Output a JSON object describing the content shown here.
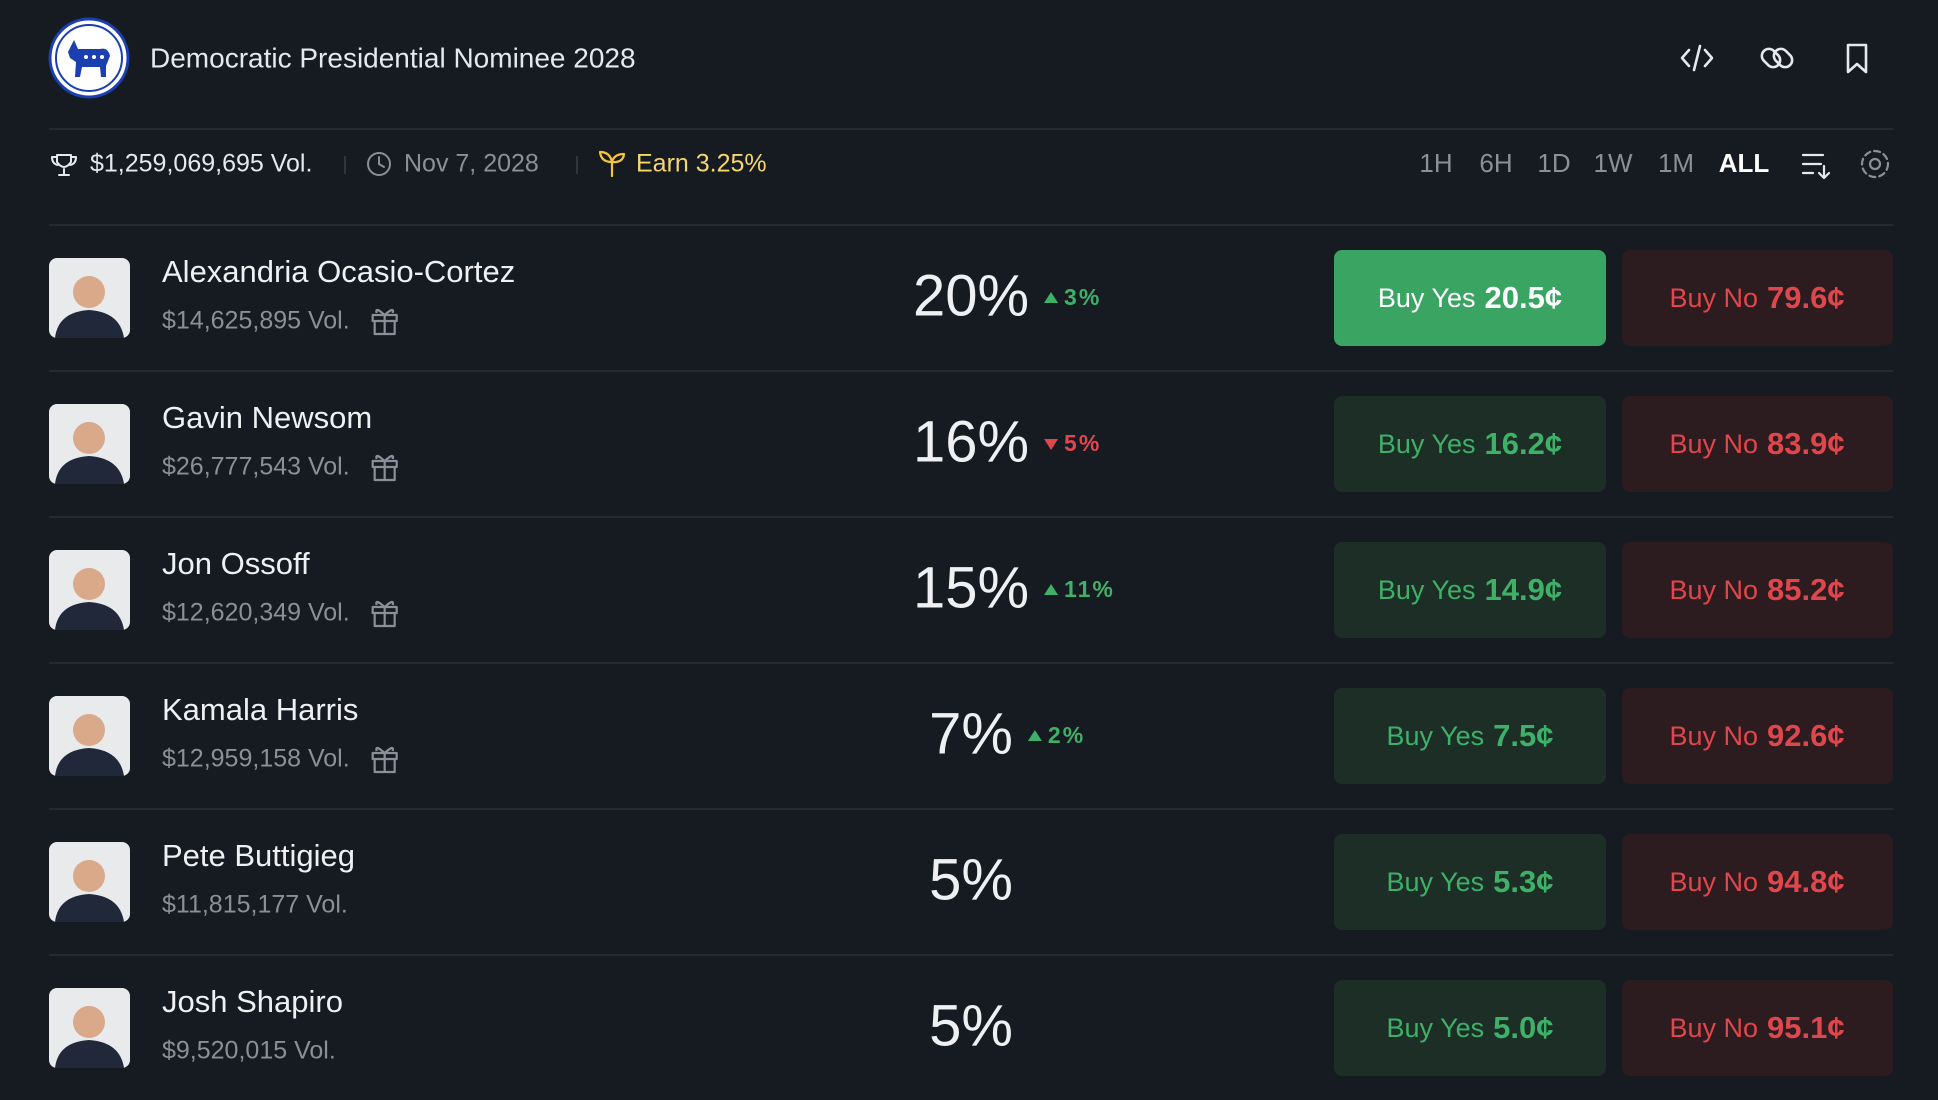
{
  "header": {
    "title": "Democratic Presidential Nominee 2028",
    "volume": "$1,259,069,695 Vol.",
    "end_date": "Nov 7, 2028",
    "earn": "Earn 3.25%"
  },
  "time_ranges": {
    "options": [
      "1H",
      "6H",
      "1D",
      "1W",
      "1M",
      "ALL"
    ],
    "selected_index": 5
  },
  "outcomes": [
    {
      "name": "Alexandria Ocasio-Cortez",
      "volume": "$14,625,895 Vol.",
      "probability": "20%",
      "change": "3%",
      "direction": "up",
      "gift": true,
      "highlighted": true,
      "yes_label": "Buy Yes",
      "yes_price": "20.5¢",
      "no_label": "Buy No",
      "no_price": "79.6¢"
    },
    {
      "name": "Gavin Newsom",
      "volume": "$26,777,543 Vol.",
      "probability": "16%",
      "change": "5%",
      "direction": "down",
      "gift": true,
      "highlighted": false,
      "yes_label": "Buy Yes",
      "yes_price": "16.2¢",
      "no_label": "Buy No",
      "no_price": "83.9¢"
    },
    {
      "name": "Jon Ossoff",
      "volume": "$12,620,349 Vol.",
      "probability": "15%",
      "change": "11%",
      "direction": "up",
      "gift": true,
      "highlighted": false,
      "yes_label": "Buy Yes",
      "yes_price": "14.9¢",
      "no_label": "Buy No",
      "no_price": "85.2¢"
    },
    {
      "name": "Kamala Harris",
      "volume": "$12,959,158 Vol.",
      "probability": "7%",
      "change": "2%",
      "direction": "up",
      "gift": true,
      "highlighted": false,
      "yes_label": "Buy Yes",
      "yes_price": "7.5¢",
      "no_label": "Buy No",
      "no_price": "92.6¢"
    },
    {
      "name": "Pete Buttigieg",
      "volume": "$11,815,177 Vol.",
      "probability": "5%",
      "change": null,
      "direction": null,
      "gift": false,
      "highlighted": false,
      "yes_label": "Buy Yes",
      "yes_price": "5.3¢",
      "no_label": "Buy No",
      "no_price": "94.8¢"
    },
    {
      "name": "Josh Shapiro",
      "volume": "$9,520,015 Vol.",
      "probability": "5%",
      "change": null,
      "direction": null,
      "gift": false,
      "highlighted": false,
      "yes_label": "Buy Yes",
      "yes_price": "5.0¢",
      "no_label": "Buy No",
      "no_price": "95.1¢"
    }
  ]
}
